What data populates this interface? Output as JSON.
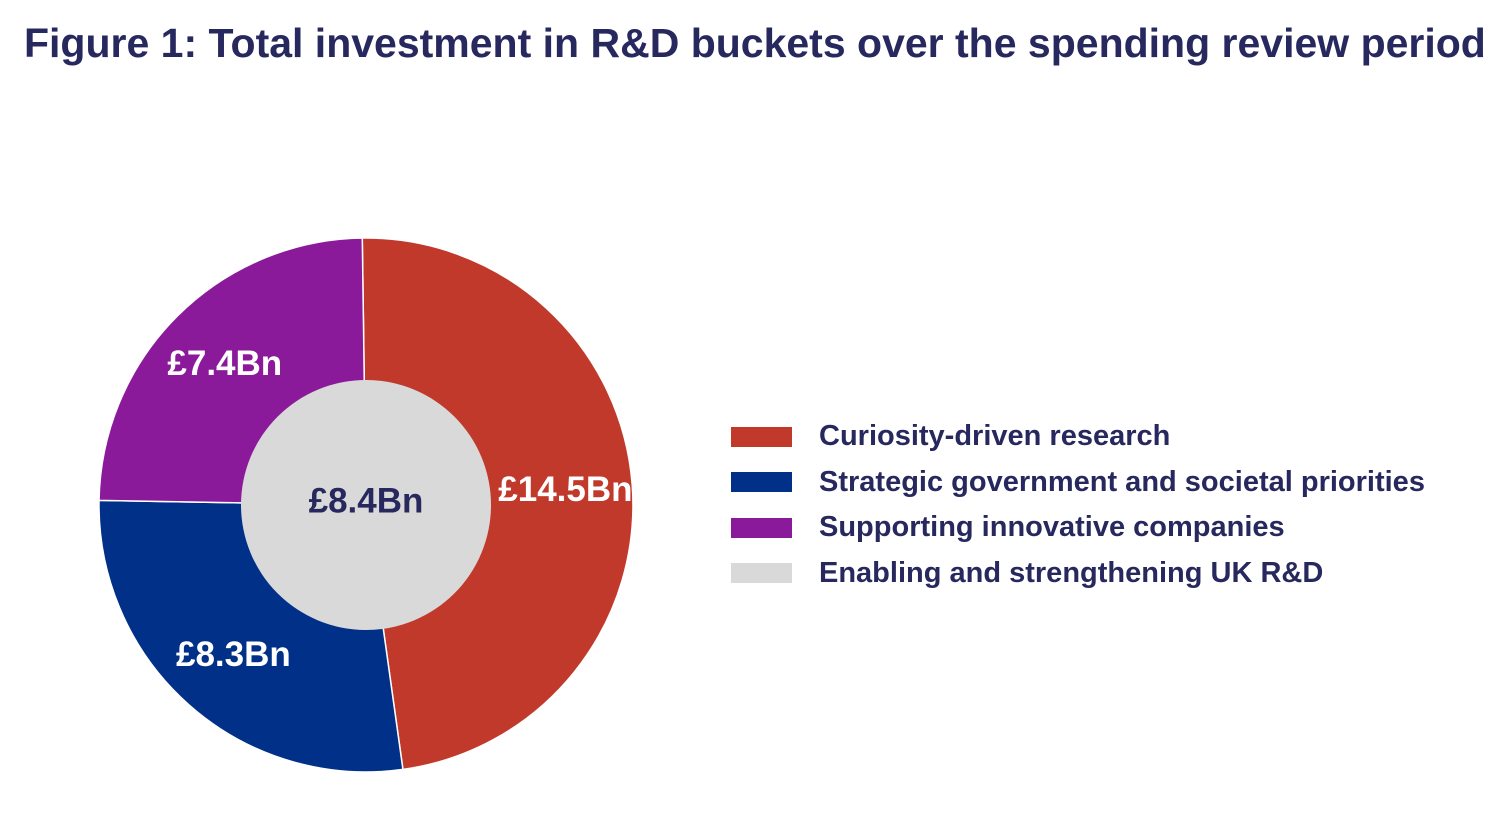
{
  "title": "Figure 1: Total investment in R&D buckets over the spending review period",
  "chart_data": {
    "type": "pie",
    "variant": "nested donut with centre value",
    "ring": [
      {
        "name": "Curiosity-driven research",
        "value": 14.5,
        "label": "£14.5Bn",
        "color": "#c0392b",
        "label_color": "#ffffff"
      },
      {
        "name": "Strategic government and societal priorities",
        "value": 8.3,
        "label": "£8.3Bn",
        "color": "#003087",
        "label_color": "#ffffff"
      },
      {
        "name": "Supporting innovative companies",
        "value": 7.4,
        "label": "£7.4Bn",
        "color": "#8b1a9a",
        "label_color": "#ffffff"
      }
    ],
    "center": {
      "name": "Enabling and strengthening UK R&D",
      "value": 8.4,
      "label": "£8.4Bn",
      "color": "#d9d9d9",
      "label_color": "#27285e"
    },
    "legend_position": "right"
  },
  "legend": [
    {
      "label": "Curiosity-driven research",
      "color": "#c0392b"
    },
    {
      "label": "Strategic government and societal priorities",
      "color": "#003087"
    },
    {
      "label": "Supporting innovative companies",
      "color": "#8b1a9a"
    },
    {
      "label": "Enabling and strengthening UK R&D",
      "color": "#d9d9d9"
    }
  ]
}
